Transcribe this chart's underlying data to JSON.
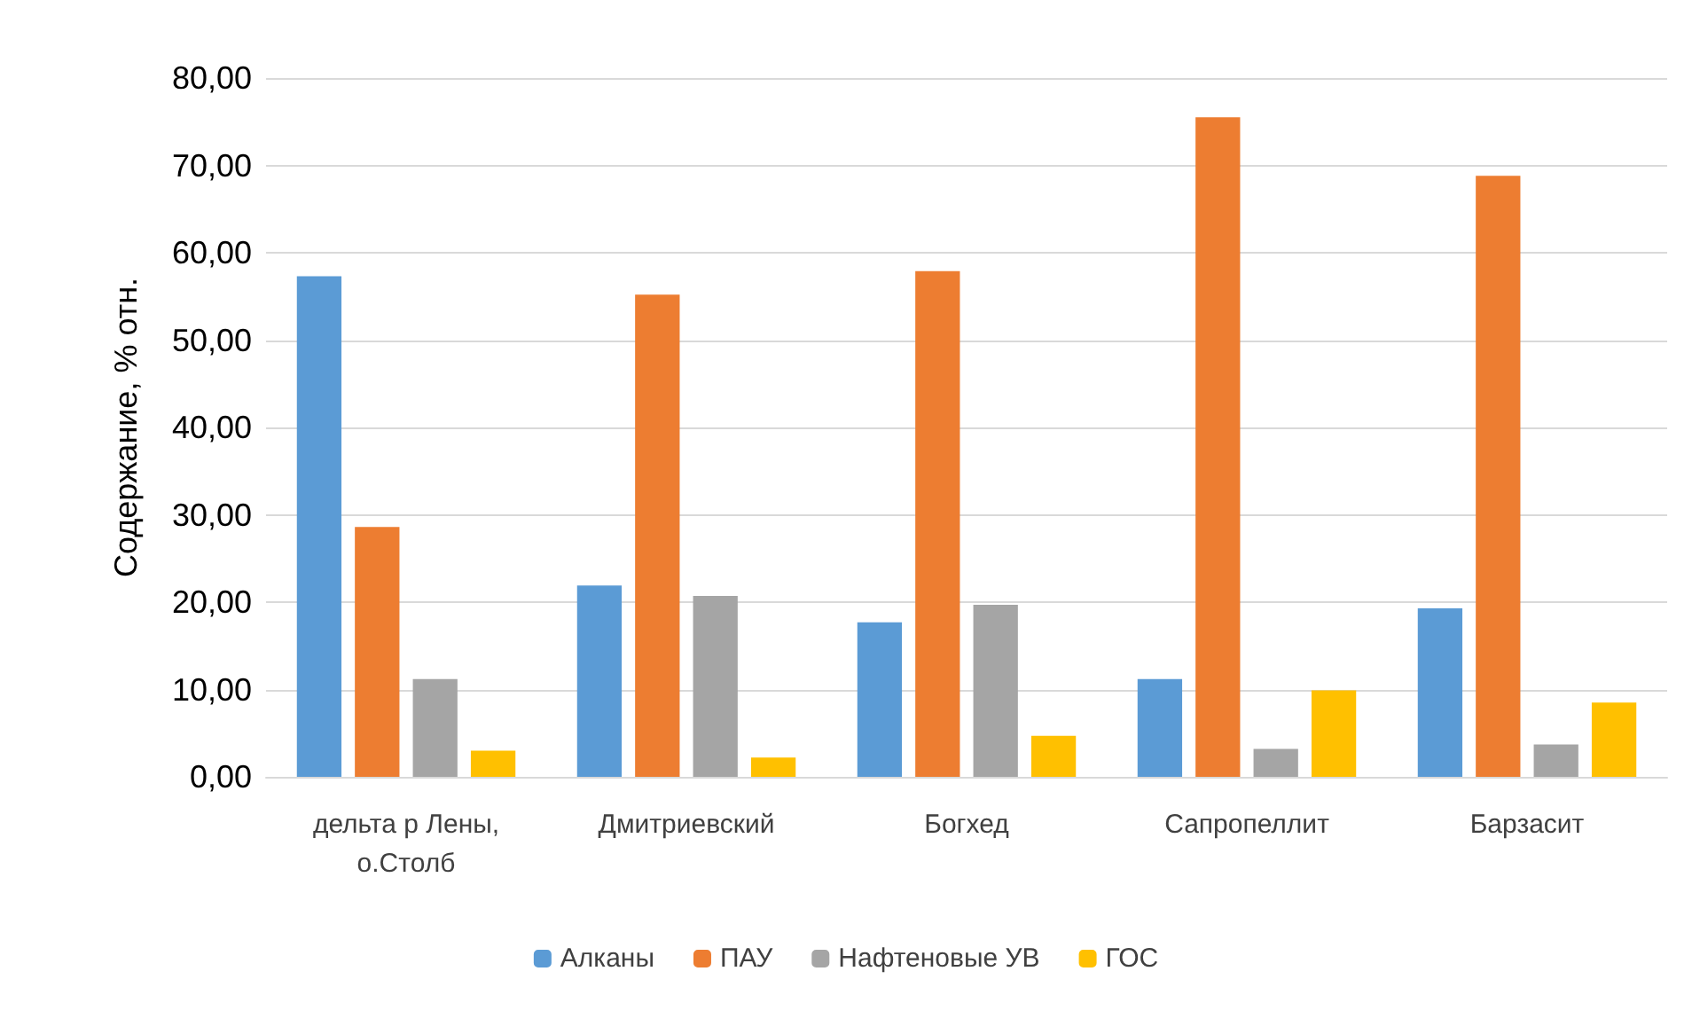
{
  "chart_data": {
    "type": "bar",
    "ylabel": "Содержание, % отн.",
    "categories": [
      "дельта р Лены, о.Столб",
      "Дмитриевский",
      "Богхед",
      "Сапропеллит",
      "Барзасит"
    ],
    "series": [
      {
        "name": "Алканы",
        "color": "#5b9bd5",
        "values": [
          57.3,
          21.9,
          17.7,
          11.2,
          19.3
        ]
      },
      {
        "name": "ПАУ",
        "color": "#ed7d31",
        "values": [
          28.6,
          55.2,
          57.9,
          75.5,
          68.8
        ]
      },
      {
        "name": "Нафтеновые УВ",
        "color": "#a5a5a5",
        "values": [
          11.2,
          20.7,
          19.7,
          3.2,
          3.7
        ]
      },
      {
        "name": "ГОС",
        "color": "#ffc000",
        "values": [
          3.0,
          2.2,
          4.7,
          9.9,
          8.5
        ]
      }
    ],
    "ylim": [
      0,
      80
    ],
    "yticks": [
      {
        "value": 0,
        "label": "0,00"
      },
      {
        "value": 10,
        "label": "10,00"
      },
      {
        "value": 20,
        "label": "20,00"
      },
      {
        "value": 30,
        "label": "30,00"
      },
      {
        "value": 40,
        "label": "40,00"
      },
      {
        "value": 50,
        "label": "50,00"
      },
      {
        "value": 60,
        "label": "60,00"
      },
      {
        "value": 70,
        "label": "70,00"
      },
      {
        "value": 80,
        "label": "80,00"
      }
    ],
    "grid": "y",
    "legend": "bottom"
  }
}
